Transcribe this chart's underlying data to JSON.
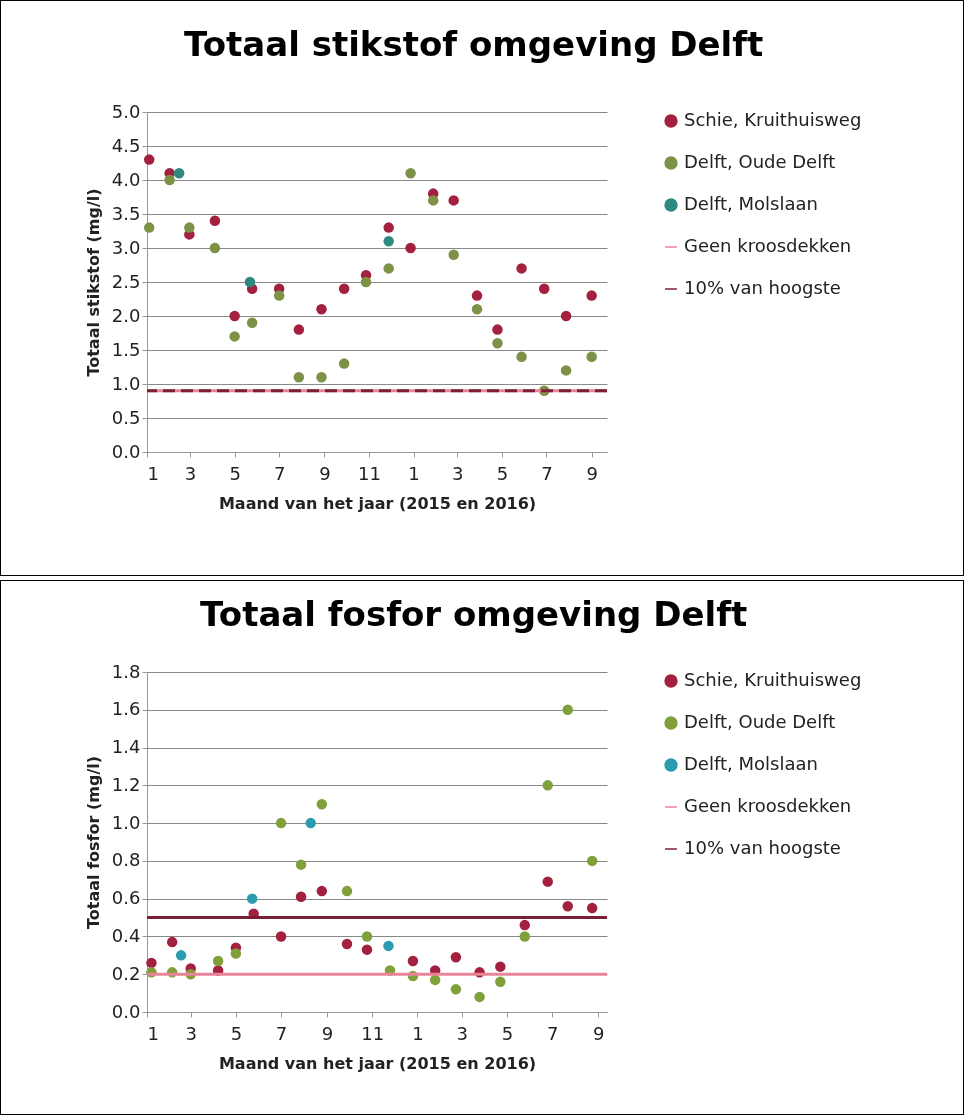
{
  "chart_data": [
    {
      "type": "scatter",
      "title": "Totaal stikstof omgeving Delft",
      "xlabel": "Maand van het jaar (2015 en 2016)",
      "ylabel": "Totaal stikstof (mg/l)",
      "xlim": [
        "2015-01-01",
        "2016-09-22"
      ],
      "xticks": [
        {
          "value": "2015-01-01",
          "label": "1"
        },
        {
          "value": "2015-03-01",
          "label": "3"
        },
        {
          "value": "2015-05-01",
          "label": "5"
        },
        {
          "value": "2015-07-01",
          "label": "7"
        },
        {
          "value": "2015-09-01",
          "label": "9"
        },
        {
          "value": "2015-11-01",
          "label": "11"
        },
        {
          "value": "2016-01-01",
          "label": "1"
        },
        {
          "value": "2016-03-01",
          "label": "3"
        },
        {
          "value": "2016-05-01",
          "label": "5"
        },
        {
          "value": "2016-07-01",
          "label": "7"
        },
        {
          "value": "2016-09-01",
          "label": "9"
        }
      ],
      "ylim": [
        0,
        5
      ],
      "yticks": [
        {
          "value": 0,
          "label": "0.0"
        },
        {
          "value": 0.5,
          "label": "0.5"
        },
        {
          "value": 1,
          "label": "1.0"
        },
        {
          "value": 1.5,
          "label": "1.5"
        },
        {
          "value": 2,
          "label": "2.0"
        },
        {
          "value": 2.5,
          "label": "2.5"
        },
        {
          "value": 3,
          "label": "3.0"
        },
        {
          "value": 3.5,
          "label": "3.5"
        },
        {
          "value": 4,
          "label": "4.0"
        },
        {
          "value": 4.5,
          "label": "4.5"
        },
        {
          "value": 5,
          "label": "5.0"
        }
      ],
      "grid": "y",
      "legend": "right",
      "marker": "circle",
      "series": [
        {
          "name": "Schie, Kruithuisweg",
          "color": "#a3203f",
          "x": [
            "2015-01-04",
            "2015-02-01",
            "2015-02-28",
            "2015-04-04",
            "2015-05-01",
            "2015-05-25",
            "2015-07-01",
            "2015-07-28",
            "2015-08-28",
            "2015-09-28",
            "2015-10-28",
            "2015-11-28",
            "2015-12-28",
            "2016-01-28",
            "2016-02-25",
            "2016-03-28",
            "2016-04-25",
            "2016-05-28",
            "2016-06-28",
            "2016-07-28",
            "2016-09-01"
          ],
          "values": [
            4.3,
            4.1,
            3.2,
            3.4,
            2.0,
            2.4,
            2.4,
            1.8,
            2.1,
            2.4,
            2.6,
            3.3,
            3.0,
            3.8,
            3.7,
            2.3,
            1.8,
            2.7,
            2.4,
            2.0,
            2.3
          ]
        },
        {
          "name": "Delft, Oude Delft",
          "color": "#7d9147",
          "x": [
            "2015-01-04",
            "2015-02-01",
            "2015-02-28",
            "2015-04-04",
            "2015-05-01",
            "2015-05-25",
            "2015-07-01",
            "2015-07-28",
            "2015-08-28",
            "2015-09-28",
            "2015-10-28",
            "2015-11-28",
            "2015-12-28",
            "2016-01-28",
            "2016-02-25",
            "2016-03-28",
            "2016-04-25",
            "2016-05-28",
            "2016-06-28",
            "2016-07-28",
            "2016-09-01"
          ],
          "values": [
            3.3,
            4.0,
            3.3,
            3.0,
            1.7,
            1.9,
            2.3,
            1.1,
            1.1,
            1.3,
            2.5,
            2.7,
            4.1,
            3.7,
            2.9,
            2.1,
            1.6,
            1.4,
            0.9,
            1.2,
            1.4
          ]
        },
        {
          "name": "Delft, Molslaan",
          "color": "#2e8a7e",
          "x": [
            "2015-02-14",
            "2015-05-22",
            "2015-11-28"
          ],
          "values": [
            4.1,
            2.5,
            3.1
          ]
        }
      ],
      "ref_lines": [
        {
          "axis": "y",
          "value": 0.9,
          "label": "Geen kroosdekken",
          "color": "#e8849a"
        },
        {
          "axis": "y",
          "value": 0.9,
          "label": "10% van hoogste",
          "color": "#7b1f36",
          "line_style": "dashed"
        }
      ]
    },
    {
      "type": "scatter",
      "title": "Totaal fosfor omgeving Delft",
      "xlabel": "Maand van het jaar (2015 en 2016)",
      "ylabel": "Totaal fosfor (mg/l)",
      "xlim": [
        "2015-01-01",
        "2016-09-13"
      ],
      "xticks": [
        {
          "value": "2015-01-01",
          "label": "1"
        },
        {
          "value": "2015-03-01",
          "label": "3"
        },
        {
          "value": "2015-05-01",
          "label": "5"
        },
        {
          "value": "2015-07-01",
          "label": "7"
        },
        {
          "value": "2015-09-01",
          "label": "9"
        },
        {
          "value": "2015-11-01",
          "label": "11"
        },
        {
          "value": "2016-01-01",
          "label": "1"
        },
        {
          "value": "2016-03-01",
          "label": "3"
        },
        {
          "value": "2016-05-01",
          "label": "5"
        },
        {
          "value": "2016-07-01",
          "label": "7"
        },
        {
          "value": "2016-09-01",
          "label": "9"
        }
      ],
      "ylim": [
        0,
        1.8
      ],
      "yticks": [
        {
          "value": 0,
          "label": "0.0"
        },
        {
          "value": 0.2,
          "label": "0.2"
        },
        {
          "value": 0.4,
          "label": "0.4"
        },
        {
          "value": 0.6,
          "label": "0.6"
        },
        {
          "value": 0.8,
          "label": "0.8"
        },
        {
          "value": 1,
          "label": "1.0"
        },
        {
          "value": 1.2,
          "label": "1.2"
        },
        {
          "value": 1.4,
          "label": "1.4"
        },
        {
          "value": 1.6,
          "label": "1.6"
        },
        {
          "value": 1.8,
          "label": "1.8"
        }
      ],
      "grid": "y",
      "legend": "right",
      "marker": "circle",
      "series": [
        {
          "name": "Schie, Kruithuisweg",
          "color": "#a3203f",
          "x": [
            "2015-01-07",
            "2015-02-04",
            "2015-03-01",
            "2015-04-07",
            "2015-05-01",
            "2015-05-25",
            "2015-07-01",
            "2015-07-28",
            "2015-08-25",
            "2015-09-28",
            "2015-10-25",
            "2015-12-26",
            "2016-01-25",
            "2016-02-22",
            "2016-03-25",
            "2016-04-22",
            "2016-05-25",
            "2016-06-25",
            "2016-07-22",
            "2016-08-24"
          ],
          "values": [
            0.26,
            0.37,
            0.23,
            0.22,
            0.34,
            0.52,
            0.4,
            0.61,
            0.64,
            0.36,
            0.33,
            0.27,
            0.22,
            0.29,
            0.21,
            0.24,
            0.46,
            0.69,
            0.56,
            0.55
          ]
        },
        {
          "name": "Delft, Oude Delft",
          "color": "#7fa03a",
          "x": [
            "2015-01-07",
            "2015-02-04",
            "2015-03-01",
            "2015-04-07",
            "2015-05-01",
            "2015-07-01",
            "2015-07-28",
            "2015-08-25",
            "2015-09-28",
            "2015-10-25",
            "2015-11-25",
            "2015-12-26",
            "2016-01-25",
            "2016-02-22",
            "2016-03-25",
            "2016-04-22",
            "2016-05-25",
            "2016-06-25",
            "2016-07-22",
            "2016-08-24"
          ],
          "values": [
            0.21,
            0.21,
            0.2,
            0.27,
            0.31,
            1.0,
            0.78,
            1.1,
            0.64,
            0.4,
            0.22,
            0.19,
            0.17,
            0.12,
            0.08,
            0.16,
            0.4,
            1.2,
            1.6,
            0.8
          ]
        },
        {
          "name": "Delft, Molslaan",
          "color": "#2b9bb0",
          "x": [
            "2015-02-16",
            "2015-05-23",
            "2015-08-10",
            "2015-11-23"
          ],
          "values": [
            0.3,
            0.6,
            1.0,
            0.35
          ]
        }
      ],
      "ref_lines": [
        {
          "axis": "y",
          "value": 0.2,
          "label": "Geen kroosdekken",
          "color": "#e8849a"
        },
        {
          "axis": "y",
          "value": 0.5,
          "label": "10% van hoogste",
          "color": "#7b1f36"
        }
      ]
    }
  ]
}
